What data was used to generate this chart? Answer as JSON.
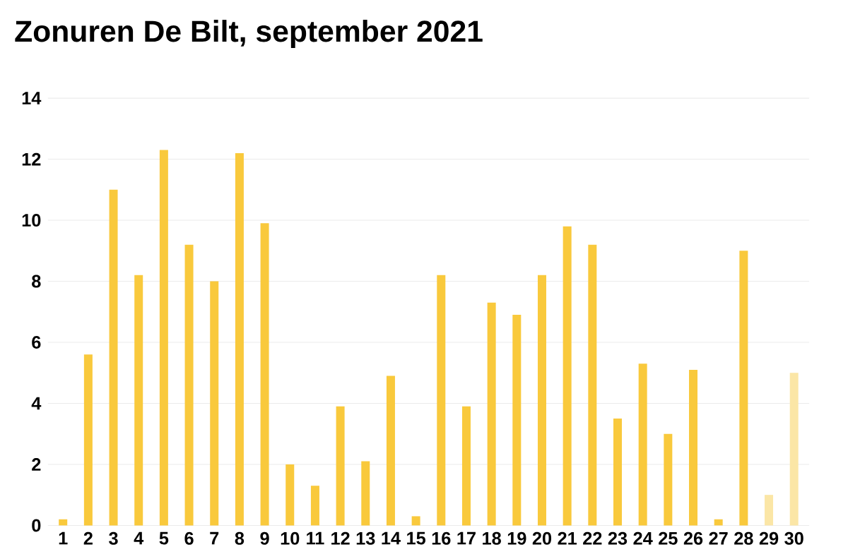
{
  "chart_data": {
    "type": "bar",
    "title": "Zonuren De Bilt, september 2021",
    "categories": [
      "1",
      "2",
      "3",
      "4",
      "5",
      "6",
      "7",
      "8",
      "9",
      "10",
      "11",
      "12",
      "13",
      "14",
      "15",
      "16",
      "17",
      "18",
      "19",
      "20",
      "21",
      "22",
      "23",
      "24",
      "25",
      "26",
      "27",
      "28",
      "29",
      "30"
    ],
    "values": [
      0.2,
      5.6,
      11.0,
      8.2,
      12.3,
      9.2,
      8.0,
      12.2,
      9.9,
      2.0,
      1.3,
      3.9,
      2.1,
      4.9,
      0.3,
      8.2,
      3.9,
      7.3,
      6.9,
      8.2,
      9.8,
      9.2,
      3.5,
      5.3,
      3.0,
      5.1,
      0.2,
      9.0,
      1.0,
      5.0
    ],
    "colors": [
      "#f9c93c",
      "#f9c93c",
      "#f9c93c",
      "#f9c93c",
      "#f9c93c",
      "#f9c93c",
      "#f9c93c",
      "#f9c93c",
      "#f9c93c",
      "#f9c93c",
      "#f9c93c",
      "#f9c93c",
      "#f9c93c",
      "#f9c93c",
      "#f9c93c",
      "#f9c93c",
      "#f9c93c",
      "#f9c93c",
      "#f9c93c",
      "#f9c93c",
      "#f9c93c",
      "#f9c93c",
      "#f9c93c",
      "#f9c93c",
      "#f9c93c",
      "#f9c93c",
      "#f9c93c",
      "#f9c93c",
      "#fbe6a6",
      "#fbe6a6"
    ],
    "ylim": [
      0,
      14
    ],
    "yticks": [
      0,
      2,
      4,
      6,
      8,
      10,
      12,
      14
    ],
    "grid": "y"
  }
}
